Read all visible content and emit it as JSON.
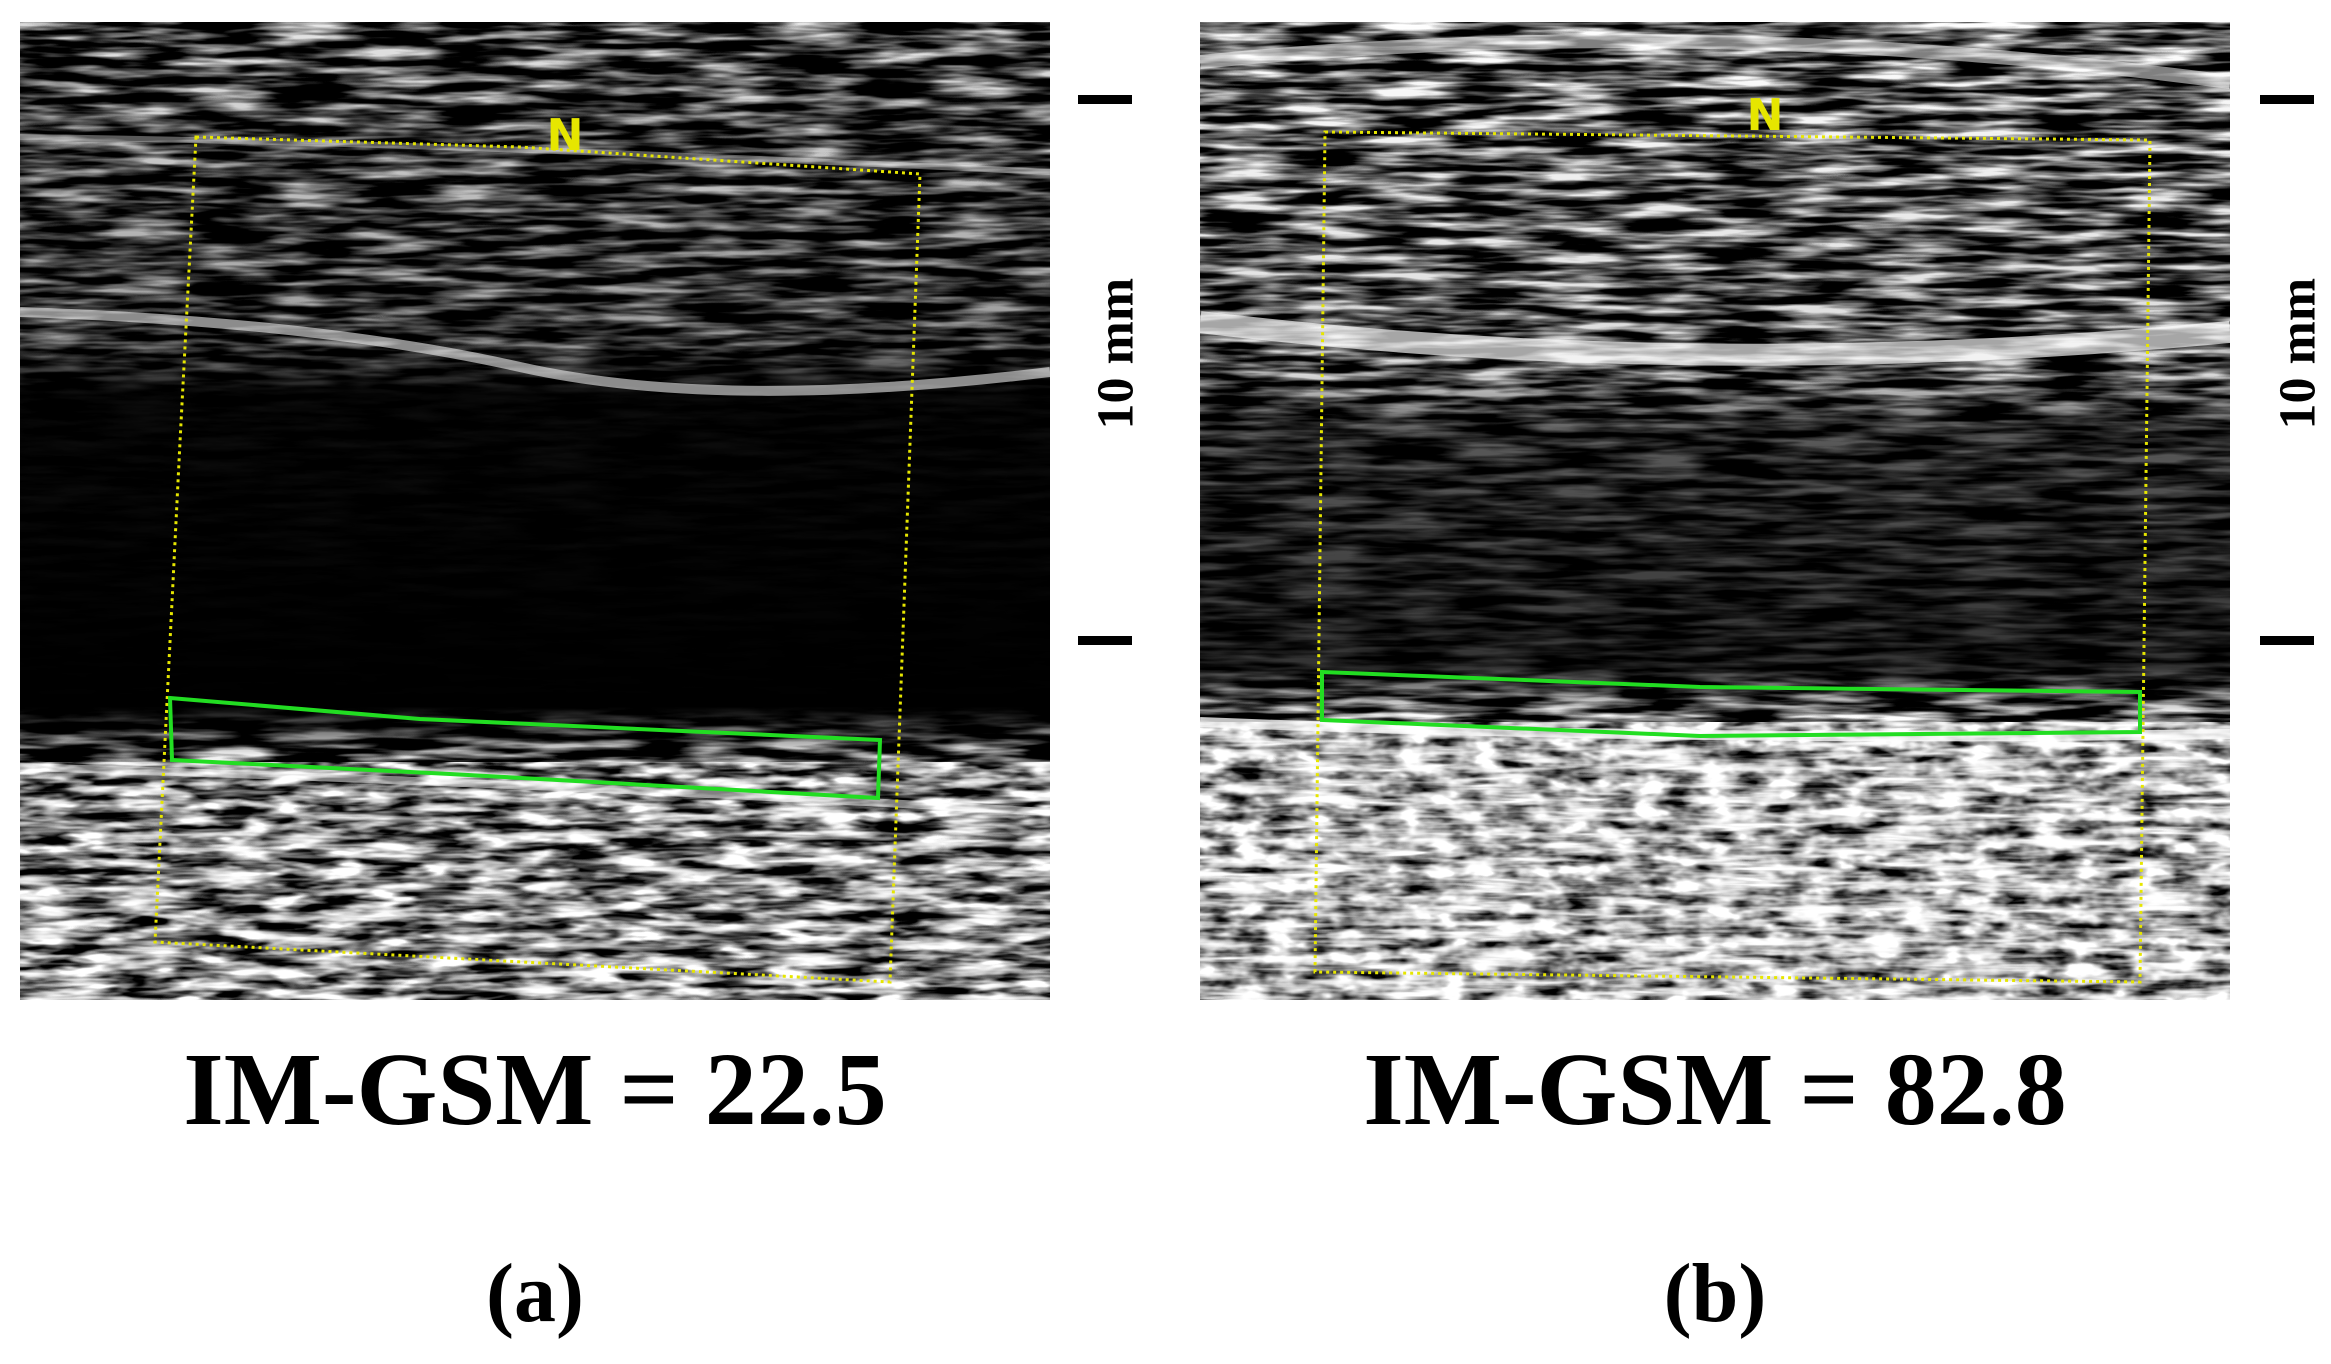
{
  "panels": [
    {
      "id": "a",
      "marker": "N",
      "scale_label": "10 mm",
      "gsm_label": "IM-GSM = 22.5",
      "panel_letter": "(a)"
    },
    {
      "id": "b",
      "marker": "N",
      "scale_label": "10 mm",
      "gsm_label": "IM-GSM = 82.8",
      "panel_letter": "(b)"
    }
  ],
  "colors": {
    "roi_outline": "#e6e600",
    "intima_media_outline": "#22dd22",
    "background": "#000000"
  }
}
